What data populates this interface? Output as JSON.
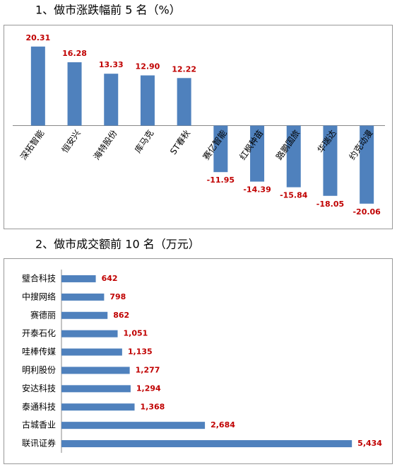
{
  "chart_data": [
    {
      "type": "bar",
      "orientation": "vertical",
      "title": "1、做市涨跌幅前 5 名（%）",
      "categories": [
        "深拓智能",
        "恒安兴",
        "海特股份",
        "库马克",
        "ST春秋",
        "赛亿智能",
        "红枫种苗",
        "路鹏国旅",
        "华瑞达",
        "约克动漫"
      ],
      "values": [
        20.31,
        16.28,
        13.33,
        12.9,
        12.22,
        -11.95,
        -14.39,
        -15.84,
        -18.05,
        -20.06
      ],
      "value_labels": [
        "20.31",
        "16.28",
        "13.33",
        "12.90",
        "12.22",
        "-11.95",
        "-14.39",
        "-15.84",
        "-18.05",
        "-20.06"
      ],
      "color": "#4f81bd",
      "label_color": "#c00000",
      "ylim": [
        -25,
        25
      ]
    },
    {
      "type": "bar",
      "orientation": "horizontal",
      "title": "2、做市成交额前 10 名（万元）",
      "categories": [
        "璧合科技",
        "中搜网络",
        "赛德丽",
        "开泰石化",
        "哇棒传媒",
        "明利股份",
        "安达科技",
        "泰通科技",
        "古城香业",
        "联讯证券"
      ],
      "values": [
        642,
        798,
        862,
        1051,
        1135,
        1277,
        1294,
        1368,
        2684,
        5434
      ],
      "value_labels": [
        "642",
        "798",
        "862",
        "1,051",
        "1,135",
        "1,277",
        "1,294",
        "1,368",
        "2,684",
        "5,434"
      ],
      "color": "#4f81bd",
      "label_color": "#c00000",
      "xlim": [
        0,
        6000
      ]
    }
  ]
}
